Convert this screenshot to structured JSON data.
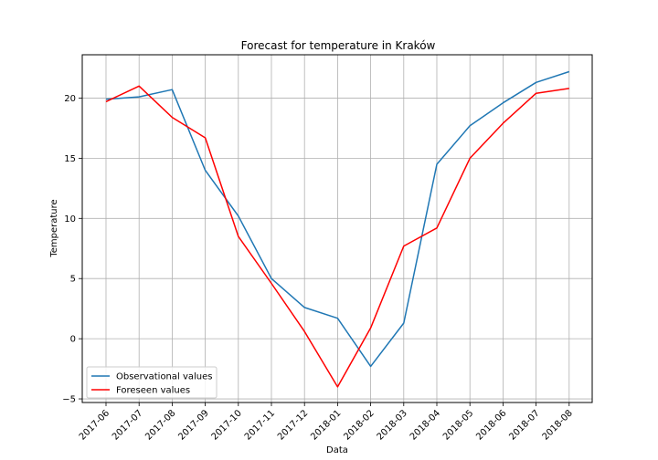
{
  "chart_data": {
    "type": "line",
    "title": "Forecast for temperature in Kraków",
    "xlabel": "Data",
    "ylabel": "Temperature",
    "categories": [
      "2017-06",
      "2017-07",
      "2017-08",
      "2017-09",
      "2017-10",
      "2017-11",
      "2017-12",
      "2018-01",
      "2018-02",
      "2018-03",
      "2018-04",
      "2018-05",
      "2018-06",
      "2018-07",
      "2018-08"
    ],
    "ylim": [
      -5.3,
      23.6
    ],
    "yticks": [
      -5,
      0,
      5,
      10,
      15,
      20
    ],
    "grid": true,
    "legend_position": "lower-left",
    "series": [
      {
        "name": "Observational values",
        "color": "#1f77b4",
        "values": [
          19.9,
          20.1,
          20.7,
          14.0,
          10.2,
          5.0,
          2.6,
          1.7,
          -2.3,
          1.3,
          14.5,
          17.7,
          19.6,
          21.3,
          22.2
        ]
      },
      {
        "name": "Foreseen values",
        "color": "#ff0000",
        "values": [
          19.7,
          21.0,
          18.4,
          16.7,
          8.5,
          4.6,
          0.6,
          -4.0,
          0.9,
          7.7,
          9.2,
          15.0,
          17.9,
          20.4,
          20.8
        ]
      }
    ]
  }
}
